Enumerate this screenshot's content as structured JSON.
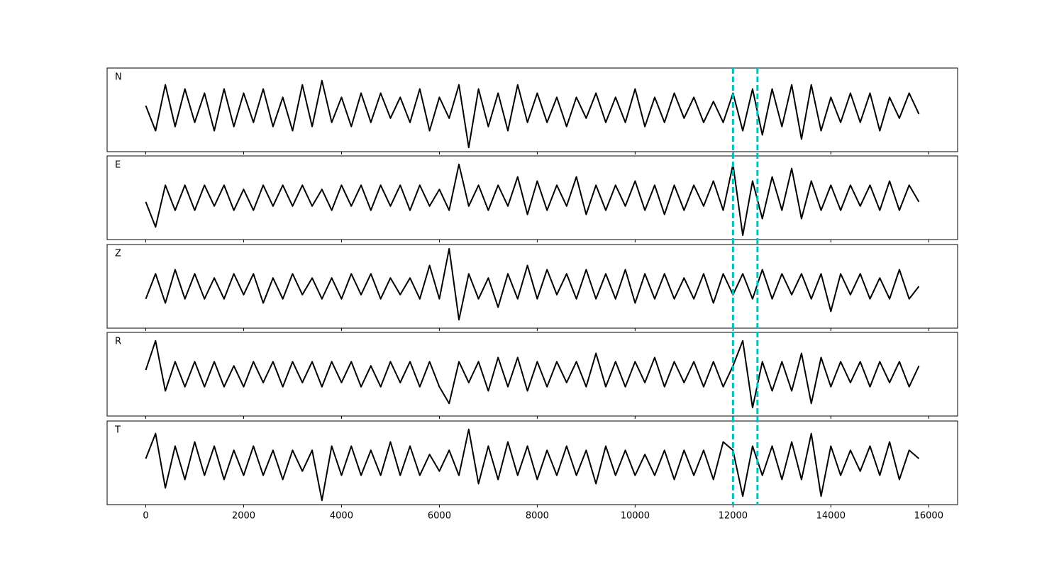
{
  "chart_data": {
    "type": "line",
    "x": [
      0,
      200,
      400,
      600,
      800,
      1000,
      1200,
      1400,
      1600,
      1800,
      2000,
      2200,
      2400,
      2600,
      2800,
      3000,
      3200,
      3400,
      3600,
      3800,
      4000,
      4200,
      4400,
      4600,
      4800,
      5000,
      5200,
      5400,
      5600,
      5800,
      6000,
      6200,
      6400,
      6600,
      6800,
      7000,
      7200,
      7400,
      7600,
      7800,
      8000,
      8200,
      8400,
      8600,
      8800,
      9000,
      9200,
      9400,
      9600,
      9800,
      10000,
      10200,
      10400,
      10600,
      10800,
      11000,
      11200,
      11400,
      11600,
      11800,
      12000,
      12200,
      12400,
      12600,
      12800,
      13000,
      13200,
      13400,
      13600,
      13800,
      14000,
      14200,
      14400,
      14600,
      14800,
      15000,
      15200,
      15400,
      15600,
      15800
    ],
    "xlim": [
      -790,
      16590
    ],
    "xticks": [
      0,
      2000,
      4000,
      6000,
      8000,
      10000,
      12000,
      14000,
      16000
    ],
    "ylim": [
      -1,
      1
    ],
    "vlines": [
      12000,
      12500
    ],
    "vline_color": "#00bfbf",
    "series": [
      {
        "name": "N",
        "color": "#000000",
        "values": [
          0.1,
          -0.5,
          0.6,
          -0.4,
          0.5,
          -0.3,
          0.4,
          -0.5,
          0.5,
          -0.4,
          0.4,
          -0.3,
          0.5,
          -0.4,
          0.3,
          -0.5,
          0.6,
          -0.4,
          0.7,
          -0.3,
          0.3,
          -0.4,
          0.4,
          -0.3,
          0.4,
          -0.2,
          0.3,
          -0.3,
          0.5,
          -0.5,
          0.3,
          -0.2,
          0.6,
          -0.9,
          0.5,
          -0.4,
          0.4,
          -0.5,
          0.6,
          -0.3,
          0.4,
          -0.3,
          0.3,
          -0.4,
          0.3,
          -0.2,
          0.4,
          -0.3,
          0.3,
          -0.3,
          0.5,
          -0.4,
          0.3,
          -0.3,
          0.4,
          -0.2,
          0.3,
          -0.3,
          0.2,
          -0.3,
          0.4,
          -0.5,
          0.5,
          -0.6,
          0.5,
          -0.4,
          0.6,
          -0.7,
          0.6,
          -0.5,
          0.3,
          -0.3,
          0.4,
          -0.3,
          0.4,
          -0.5,
          0.3,
          -0.2,
          0.4,
          -0.1
        ]
      },
      {
        "name": "E",
        "color": "#000000",
        "values": [
          -0.1,
          -0.7,
          0.3,
          -0.3,
          0.3,
          -0.3,
          0.3,
          -0.2,
          0.3,
          -0.3,
          0.2,
          -0.3,
          0.3,
          -0.2,
          0.3,
          -0.2,
          0.3,
          -0.2,
          0.2,
          -0.3,
          0.3,
          -0.2,
          0.3,
          -0.3,
          0.3,
          -0.2,
          0.3,
          -0.3,
          0.3,
          -0.2,
          0.2,
          -0.3,
          0.8,
          -0.2,
          0.3,
          -0.3,
          0.3,
          -0.2,
          0.5,
          -0.4,
          0.4,
          -0.3,
          0.3,
          -0.2,
          0.5,
          -0.4,
          0.3,
          -0.3,
          0.3,
          -0.2,
          0.4,
          -0.3,
          0.3,
          -0.4,
          0.3,
          -0.3,
          0.3,
          -0.2,
          0.4,
          -0.3,
          0.8,
          -0.9,
          0.4,
          -0.5,
          0.5,
          -0.3,
          0.7,
          -0.5,
          0.4,
          -0.3,
          0.3,
          -0.3,
          0.3,
          -0.2,
          0.3,
          -0.3,
          0.4,
          -0.3,
          0.3,
          -0.1
        ]
      },
      {
        "name": "Z",
        "color": "#000000",
        "values": [
          -0.3,
          0.3,
          -0.4,
          0.4,
          -0.3,
          0.3,
          -0.3,
          0.2,
          -0.3,
          0.3,
          -0.2,
          0.3,
          -0.4,
          0.2,
          -0.3,
          0.3,
          -0.2,
          0.2,
          -0.3,
          0.2,
          -0.3,
          0.3,
          -0.2,
          0.3,
          -0.3,
          0.2,
          -0.2,
          0.2,
          -0.3,
          0.5,
          -0.3,
          0.9,
          -0.8,
          0.3,
          -0.3,
          0.2,
          -0.5,
          0.3,
          -0.3,
          0.5,
          -0.3,
          0.4,
          -0.2,
          0.3,
          -0.3,
          0.4,
          -0.3,
          0.3,
          -0.3,
          0.4,
          -0.4,
          0.3,
          -0.3,
          0.3,
          -0.3,
          0.2,
          -0.3,
          0.3,
          -0.4,
          0.3,
          -0.2,
          0.3,
          -0.3,
          0.4,
          -0.3,
          0.3,
          -0.2,
          0.3,
          -0.3,
          0.3,
          -0.6,
          0.3,
          -0.2,
          0.3,
          -0.3,
          0.2,
          -0.3,
          0.4,
          -0.3,
          0.0
        ]
      },
      {
        "name": "R",
        "color": "#000000",
        "values": [
          0.1,
          0.8,
          -0.4,
          0.3,
          -0.3,
          0.3,
          -0.3,
          0.3,
          -0.3,
          0.2,
          -0.3,
          0.3,
          -0.2,
          0.3,
          -0.3,
          0.3,
          -0.2,
          0.3,
          -0.3,
          0.3,
          -0.2,
          0.3,
          -0.3,
          0.2,
          -0.3,
          0.3,
          -0.2,
          0.3,
          -0.3,
          0.3,
          -0.3,
          -0.7,
          0.3,
          -0.2,
          0.3,
          -0.4,
          0.4,
          -0.3,
          0.4,
          -0.4,
          0.3,
          -0.3,
          0.3,
          -0.2,
          0.3,
          -0.3,
          0.5,
          -0.3,
          0.3,
          -0.3,
          0.3,
          -0.2,
          0.4,
          -0.3,
          0.3,
          -0.2,
          0.3,
          -0.3,
          0.3,
          -0.3,
          0.2,
          0.8,
          -0.8,
          0.3,
          -0.4,
          0.3,
          -0.4,
          0.5,
          -0.7,
          0.4,
          -0.3,
          0.3,
          -0.2,
          0.3,
          -0.3,
          0.3,
          -0.2,
          0.3,
          -0.3,
          0.2
        ]
      },
      {
        "name": "T",
        "color": "#000000",
        "values": [
          0.1,
          0.7,
          -0.6,
          0.4,
          -0.4,
          0.5,
          -0.3,
          0.4,
          -0.4,
          0.3,
          -0.3,
          0.4,
          -0.3,
          0.3,
          -0.4,
          0.3,
          -0.2,
          0.3,
          -0.9,
          0.4,
          -0.3,
          0.4,
          -0.3,
          0.3,
          -0.3,
          0.5,
          -0.3,
          0.4,
          -0.3,
          0.2,
          -0.2,
          0.3,
          -0.3,
          0.8,
          -0.5,
          0.4,
          -0.4,
          0.5,
          -0.3,
          0.4,
          -0.4,
          0.3,
          -0.3,
          0.4,
          -0.3,
          0.3,
          -0.5,
          0.4,
          -0.3,
          0.3,
          -0.3,
          0.2,
          -0.3,
          0.3,
          -0.4,
          0.3,
          -0.3,
          0.3,
          -0.4,
          0.5,
          0.3,
          -0.8,
          0.4,
          -0.3,
          0.4,
          -0.4,
          0.5,
          -0.4,
          0.7,
          -0.8,
          0.4,
          -0.3,
          0.3,
          -0.2,
          0.4,
          -0.3,
          0.5,
          -0.4,
          0.3,
          0.1
        ]
      }
    ]
  }
}
